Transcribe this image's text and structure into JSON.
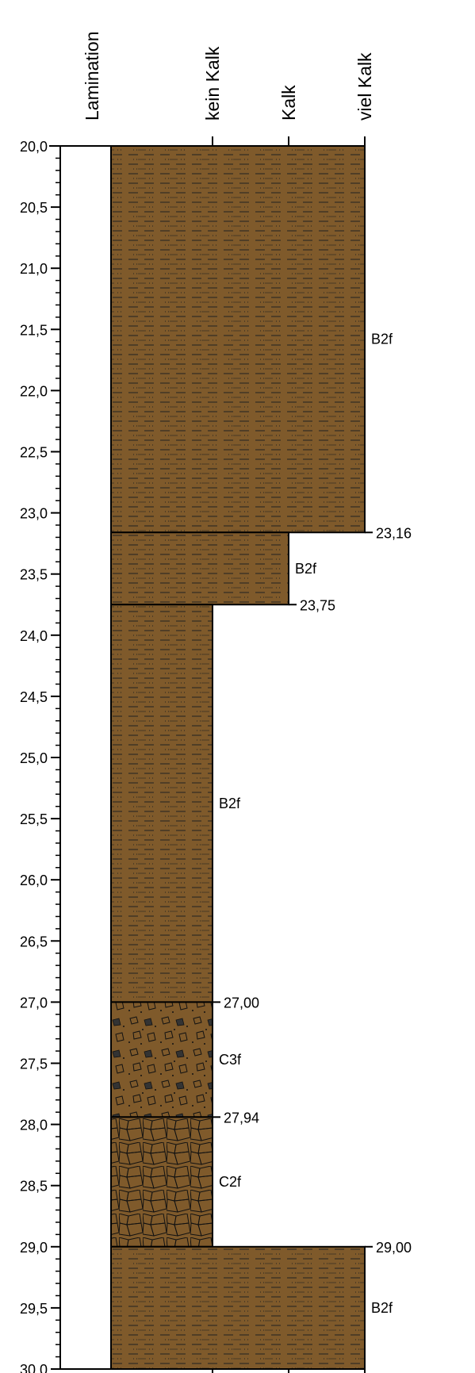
{
  "chart_data": {
    "type": "borehole-log",
    "columns": [
      "Lamination",
      "kein Kalk",
      "Kalk",
      "viel Kalk"
    ],
    "ylim": [
      20,
      30
    ],
    "yticks": [
      {
        "value": 20,
        "label": "20,0"
      },
      {
        "value": 20.5,
        "label": "20,5"
      },
      {
        "value": 21,
        "label": "21,0"
      },
      {
        "value": 21.5,
        "label": "21,5"
      },
      {
        "value": 22,
        "label": "22,0"
      },
      {
        "value": 22.5,
        "label": "22,5"
      },
      {
        "value": 23,
        "label": "23,0"
      },
      {
        "value": 23.5,
        "label": "23,5"
      },
      {
        "value": 24,
        "label": "24,0"
      },
      {
        "value": 24.5,
        "label": "24,5"
      },
      {
        "value": 25,
        "label": "25,0"
      },
      {
        "value": 25.5,
        "label": "25,5"
      },
      {
        "value": 26,
        "label": "26,0"
      },
      {
        "value": 26.5,
        "label": "26,5"
      },
      {
        "value": 27,
        "label": "27,0"
      },
      {
        "value": 27.5,
        "label": "27,5"
      },
      {
        "value": 28,
        "label": "28,0"
      },
      {
        "value": 28.5,
        "label": "28,5"
      },
      {
        "value": 29,
        "label": "29,0"
      },
      {
        "value": 29.5,
        "label": "29,5"
      },
      {
        "value": 30,
        "label": "30,0"
      }
    ],
    "boundaries": [
      20,
      {
        "value": 23.16,
        "label": "23,16"
      },
      {
        "value": 23.75,
        "label": "23,75"
      },
      {
        "value": 27.0,
        "label": "27,00"
      },
      {
        "value": 27.94,
        "label": "27,94"
      },
      {
        "value": 29.0,
        "label": "29,00"
      },
      30
    ],
    "layers": [
      {
        "horizon": "B2f",
        "level": 3,
        "pattern": "silt"
      },
      {
        "horizon": "B2f",
        "level": 2,
        "pattern": "silt"
      },
      {
        "horizon": "B2f",
        "level": 1,
        "pattern": "silt"
      },
      {
        "horizon": "C3f",
        "level": 1,
        "pattern": "gravel"
      },
      {
        "horizon": "C2f",
        "level": 1,
        "pattern": "stones"
      },
      {
        "horizon": "B2f",
        "level": 3,
        "pattern": "silt"
      }
    ],
    "color": "#7f5a2b"
  }
}
